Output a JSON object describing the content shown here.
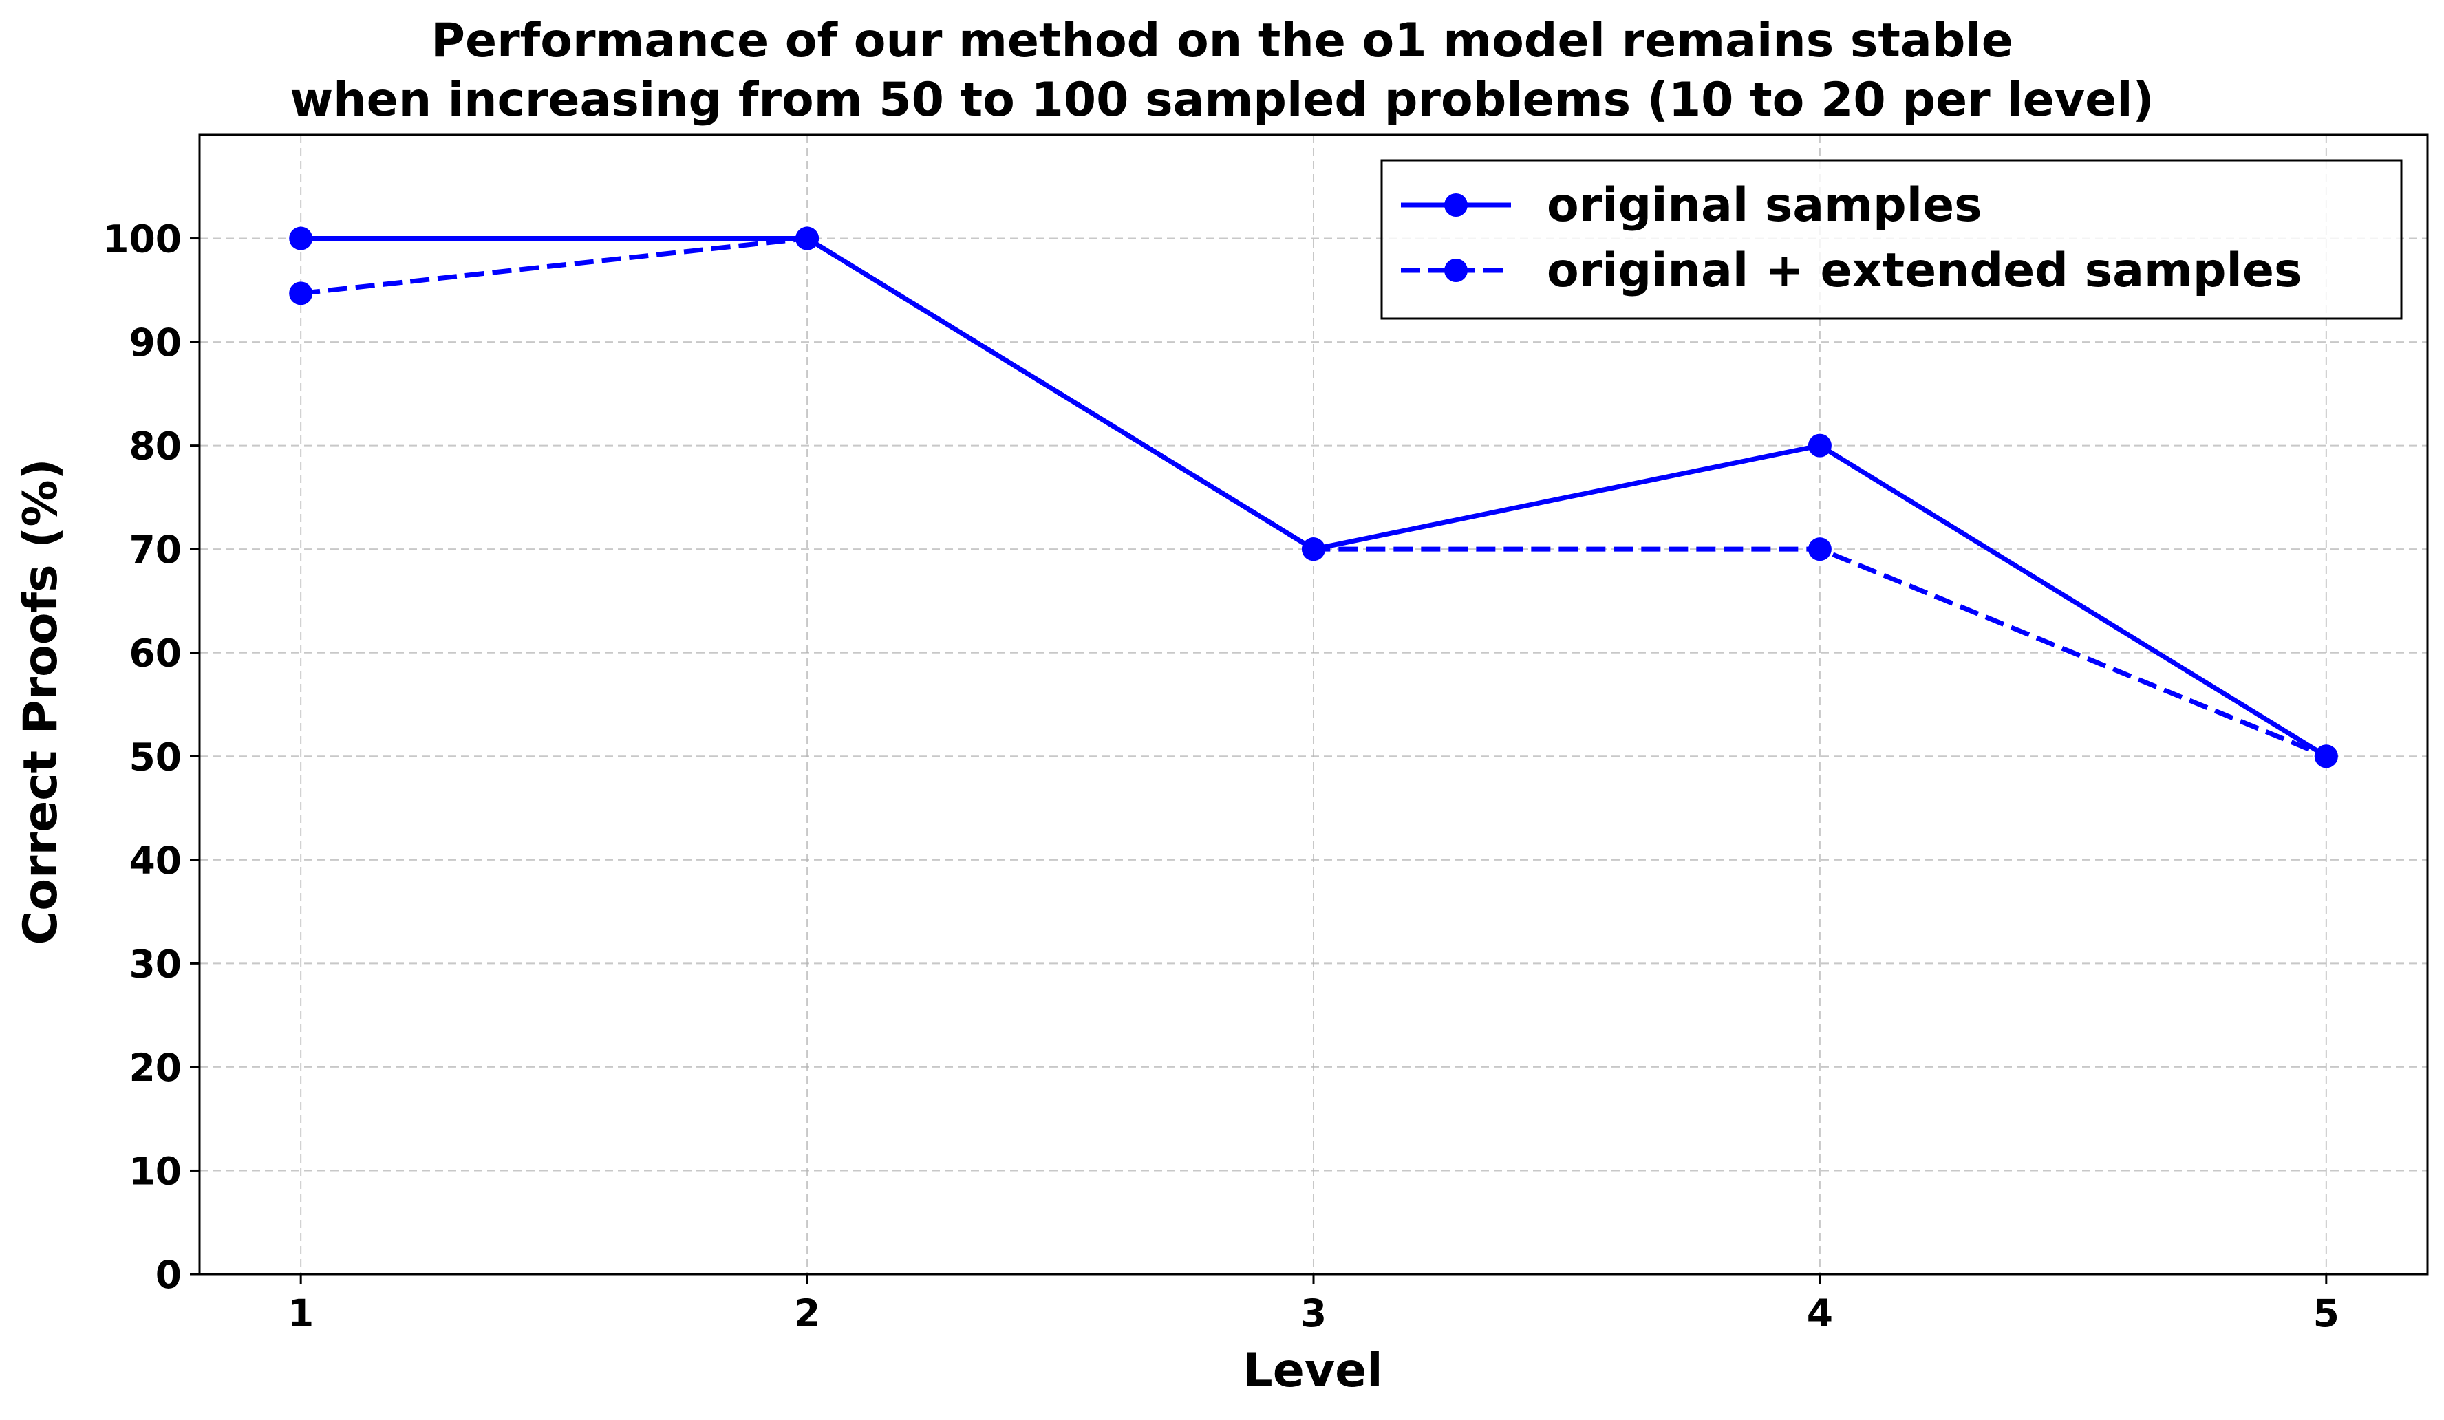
{
  "chart_data": {
    "type": "line",
    "title": [
      "Performance of our method on the o1 model remains stable",
      "when increasing from 50 to 100 sampled problems (10 to 20 per level)"
    ],
    "xlabel": "Level",
    "ylabel": "Correct Proofs (%)",
    "x": [
      1,
      2,
      3,
      4,
      5
    ],
    "x_tick_labels": [
      "1",
      "2",
      "3",
      "4",
      "5"
    ],
    "y_ticks": [
      0,
      10,
      20,
      30,
      40,
      50,
      60,
      70,
      80,
      90,
      100
    ],
    "y_tick_labels": [
      "0",
      "10",
      "20",
      "30",
      "40",
      "50",
      "60",
      "70",
      "80",
      "90",
      "100"
    ],
    "xlim": [
      0.8,
      5.2
    ],
    "ylim": [
      0,
      110
    ],
    "grid": true,
    "legend_position": "top-right",
    "series": [
      {
        "name": "original samples",
        "values": [
          100,
          100,
          70,
          80,
          50
        ],
        "line_style": "solid",
        "marker": "circle",
        "color": "#0000ff"
      },
      {
        "name": "original + extended samples",
        "values": [
          94.7,
          100,
          70,
          70,
          50
        ],
        "line_style": "dashed",
        "marker": "circle",
        "color": "#0000ff"
      }
    ]
  }
}
